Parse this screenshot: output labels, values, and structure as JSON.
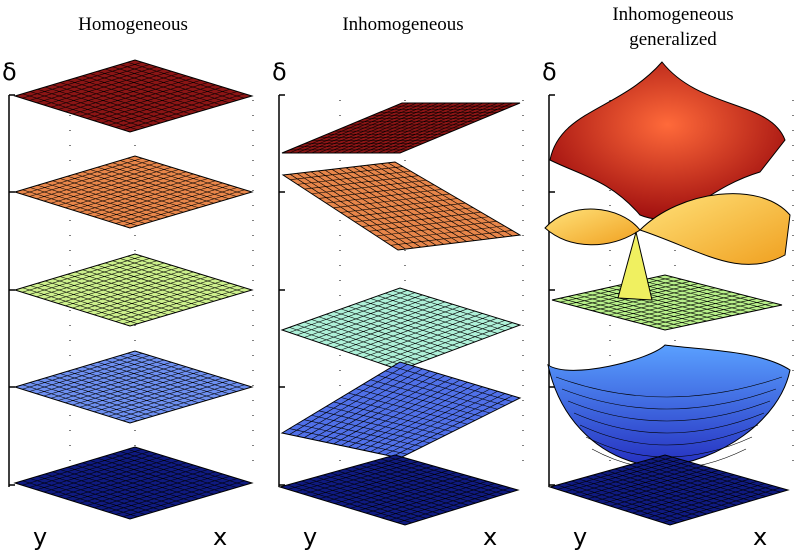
{
  "panels": [
    {
      "title": [
        "Homogeneous"
      ],
      "axis_z": "δ",
      "axis_y": "y",
      "axis_x": "x"
    },
    {
      "title": [
        "Inhomogeneous"
      ],
      "axis_z": "δ",
      "axis_y": "y",
      "axis_x": "x"
    },
    {
      "title": [
        "Inhomogeneous",
        "generalized"
      ],
      "axis_z": "δ",
      "axis_y": "y",
      "axis_x": "x"
    }
  ]
}
